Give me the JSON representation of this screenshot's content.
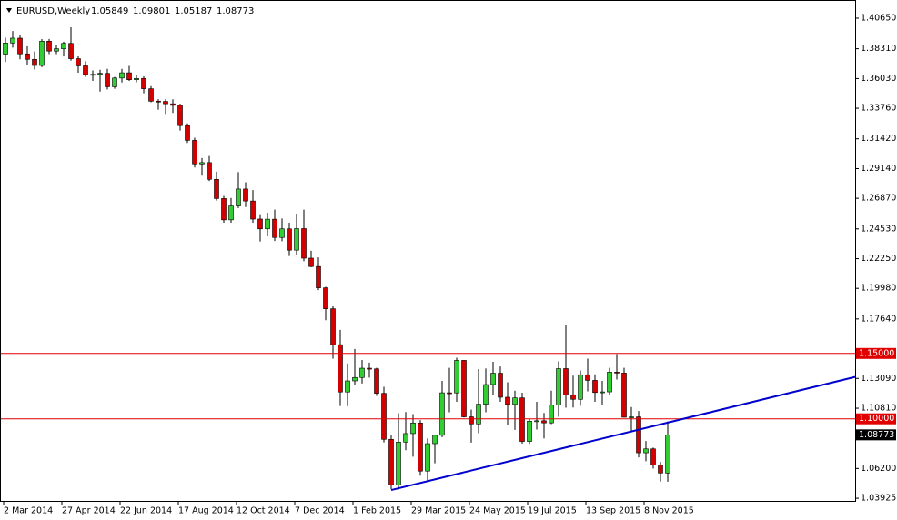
{
  "chart_data": {
    "type": "candlestick",
    "symbol": "EURUSD,Weekly",
    "categories": [
      "2 Mar 2014",
      null,
      null,
      null,
      null,
      null,
      null,
      null,
      "27 Apr 2014",
      null,
      null,
      null,
      null,
      null,
      null,
      null,
      "22 Jun 2014",
      null,
      null,
      null,
      null,
      null,
      null,
      null,
      "17 Aug 2014",
      null,
      null,
      null,
      null,
      null,
      null,
      null,
      "12 Oct 2014",
      null,
      null,
      null,
      null,
      null,
      null,
      null,
      "7 Dec 2014",
      null,
      null,
      null,
      null,
      null,
      null,
      null,
      "1 Feb 2015",
      null,
      null,
      null,
      null,
      null,
      null,
      null,
      "29 Mar 2015",
      null,
      null,
      null,
      null,
      null,
      null,
      null,
      "24 May 2015",
      null,
      null,
      null,
      null,
      null,
      null,
      null,
      "19 Jul 2015",
      null,
      null,
      null,
      null,
      null,
      null,
      null,
      "13 Sep 2015",
      null,
      null,
      null,
      null,
      null,
      null,
      null,
      "8 Nov 2015",
      null,
      null,
      null
    ],
    "open": [
      1.379,
      1.3875,
      1.3912,
      1.3792,
      1.375,
      1.3703,
      1.3889,
      1.3813,
      1.3831,
      1.3872,
      1.3755,
      1.37,
      1.3633,
      1.3635,
      1.3643,
      1.354,
      1.3607,
      1.3647,
      1.3594,
      1.3604,
      1.3525,
      1.343,
      1.3428,
      1.341,
      1.3398,
      1.3243,
      1.313,
      1.295,
      1.296,
      1.2832,
      1.2685,
      1.2522,
      1.2628,
      1.2758,
      1.2666,
      1.2528,
      1.2453,
      1.2527,
      1.2387,
      1.2453,
      1.229,
      1.2455,
      1.2229,
      1.2165,
      1.2002,
      1.1842,
      1.1567,
      1.1205,
      1.129,
      1.1316,
      1.1387,
      1.1382,
      1.1195,
      1.0843,
      1.0494,
      1.0822,
      1.0887,
      1.0968,
      1.06,
      1.081,
      1.0874,
      1.1199,
      1.1198,
      1.1447,
      1.1015,
      1.0961,
      1.1112,
      1.1262,
      1.1349,
      1.1165,
      1.111,
      1.116,
      1.0827,
      1.0982,
      1.0985,
      1.0969,
      1.1107,
      1.1384,
      1.1184,
      1.1149,
      1.1337,
      1.1294,
      1.1201,
      1.1206,
      1.1357,
      1.135,
      1.1012,
      1.1015,
      1.074,
      1.077,
      1.0648,
      1.05849
    ],
    "high": [
      1.3915,
      1.3967,
      1.394,
      1.385,
      1.381,
      1.3905,
      1.3906,
      1.3857,
      1.3885,
      1.3995,
      1.3773,
      1.3735,
      1.3665,
      1.367,
      1.3677,
      1.3615,
      1.3677,
      1.37,
      1.3632,
      1.362,
      1.3545,
      1.3445,
      1.3445,
      1.3444,
      1.341,
      1.326,
      1.315,
      1.2995,
      1.301,
      1.289,
      1.2705,
      1.269,
      1.2887,
      1.281,
      1.275,
      1.2565,
      1.2577,
      1.26,
      1.2532,
      1.25,
      1.257,
      1.26,
      1.2285,
      1.2235,
      1.201,
      1.186,
      1.168,
      1.1424,
      1.1534,
      1.145,
      1.143,
      1.139,
      1.1245,
      1.088,
      1.1043,
      1.1052,
      1.1036,
      1.099,
      1.085,
      1.086,
      1.129,
      1.139,
      1.1467,
      1.145,
      1.107,
      1.138,
      1.1385,
      1.1436,
      1.14,
      1.128,
      1.1215,
      1.12,
      1.1,
      1.113,
      1.1045,
      1.1215,
      1.144,
      1.1714,
      1.133,
      1.137,
      1.146,
      1.134,
      1.129,
      1.139,
      1.1495,
      1.139,
      1.109,
      1.106,
      1.083,
      1.078,
      1.067,
      1.09801
    ],
    "low": [
      1.373,
      1.384,
      1.375,
      1.3705,
      1.3672,
      1.369,
      1.379,
      1.379,
      1.3772,
      1.374,
      1.3648,
      1.3615,
      1.3585,
      1.3503,
      1.352,
      1.3525,
      1.3573,
      1.3585,
      1.3575,
      1.349,
      1.3422,
      1.3365,
      1.3333,
      1.334,
      1.3205,
      1.311,
      1.2923,
      1.286,
      1.2819,
      1.267,
      1.25,
      1.25,
      1.2612,
      1.262,
      1.25,
      1.2357,
      1.2396,
      1.236,
      1.2358,
      1.2245,
      1.225,
      1.2205,
      1.216,
      1.1985,
      1.1754,
      1.146,
      1.1098,
      1.1097,
      1.126,
      1.127,
      1.1315,
      1.1175,
      1.082,
      1.0462,
      1.0458,
      1.076,
      1.071,
      1.0565,
      1.052,
      1.066,
      1.086,
      1.105,
      1.113,
      1.101,
      1.0818,
      1.089,
      1.105,
      1.118,
      1.113,
      1.0955,
      1.0915,
      1.081,
      1.0808,
      1.0918,
      1.085,
      1.096,
      1.1015,
      1.1085,
      1.1087,
      1.11,
      1.121,
      1.113,
      1.1105,
      1.118,
      1.13,
      1.101,
      1.0896,
      1.0705,
      1.0675,
      1.062,
      1.052,
      1.05187
    ],
    "close": [
      1.3875,
      1.3912,
      1.3792,
      1.375,
      1.3703,
      1.3889,
      1.3813,
      1.3831,
      1.3872,
      1.3755,
      1.37,
      1.3633,
      1.3635,
      1.3643,
      1.354,
      1.3607,
      1.3647,
      1.3594,
      1.3604,
      1.3525,
      1.343,
      1.3428,
      1.341,
      1.3398,
      1.3243,
      1.313,
      1.295,
      1.296,
      1.2832,
      1.2685,
      1.2522,
      1.2628,
      1.2758,
      1.2666,
      1.2528,
      1.2453,
      1.2527,
      1.2387,
      1.2453,
      1.229,
      1.2455,
      1.2229,
      1.2165,
      1.2002,
      1.1842,
      1.1567,
      1.1205,
      1.129,
      1.1316,
      1.1387,
      1.1382,
      1.1195,
      1.0843,
      1.0494,
      1.0822,
      1.0887,
      1.0968,
      1.06,
      1.081,
      1.0874,
      1.1199,
      1.1198,
      1.1447,
      1.1015,
      1.0961,
      1.1112,
      1.1262,
      1.1349,
      1.1165,
      1.111,
      1.116,
      1.0827,
      1.0982,
      1.0985,
      1.0969,
      1.1107,
      1.1384,
      1.1184,
      1.1149,
      1.1337,
      1.1294,
      1.1201,
      1.1206,
      1.1357,
      1.135,
      1.1012,
      1.1015,
      1.074,
      1.077,
      1.0648,
      1.0585,
      1.08773
    ],
    "up_color": "#32cd32",
    "down_color": "#d40000",
    "ylim": [
      1.0372,
      1.4197
    ],
    "yticks": [
      {
        "value": 1.4065,
        "label": "1.40650"
      },
      {
        "value": 1.3831,
        "label": "1.38310"
      },
      {
        "value": 1.3603,
        "label": "1.36030"
      },
      {
        "value": 1.3376,
        "label": "1.33760"
      },
      {
        "value": 1.3142,
        "label": "1.31420"
      },
      {
        "value": 1.2914,
        "label": "1.29140"
      },
      {
        "value": 1.2687,
        "label": "1.26870"
      },
      {
        "value": 1.2453,
        "label": "1.24530"
      },
      {
        "value": 1.2225,
        "label": "1.22250"
      },
      {
        "value": 1.1998,
        "label": "1.19980"
      },
      {
        "value": 1.1764,
        "label": "1.17640"
      },
      {
        "value": 1.1309,
        "label": "1.13090"
      },
      {
        "value": 1.1081,
        "label": "1.10810"
      },
      {
        "value": 1.062,
        "label": "1.06200"
      },
      {
        "value": 1.03925,
        "label": "1.03925"
      }
    ],
    "levels": [
      {
        "value": 1.15,
        "label": "1.15000"
      },
      {
        "value": 1.1,
        "label": "1.10000"
      }
    ],
    "level_color": "#e00000",
    "trendline": {
      "from": {
        "index": 53,
        "price": 1.0455
      },
      "to": {
        "index": 91,
        "price": 1.0971
      },
      "color": "#0000cc"
    }
  }
}
